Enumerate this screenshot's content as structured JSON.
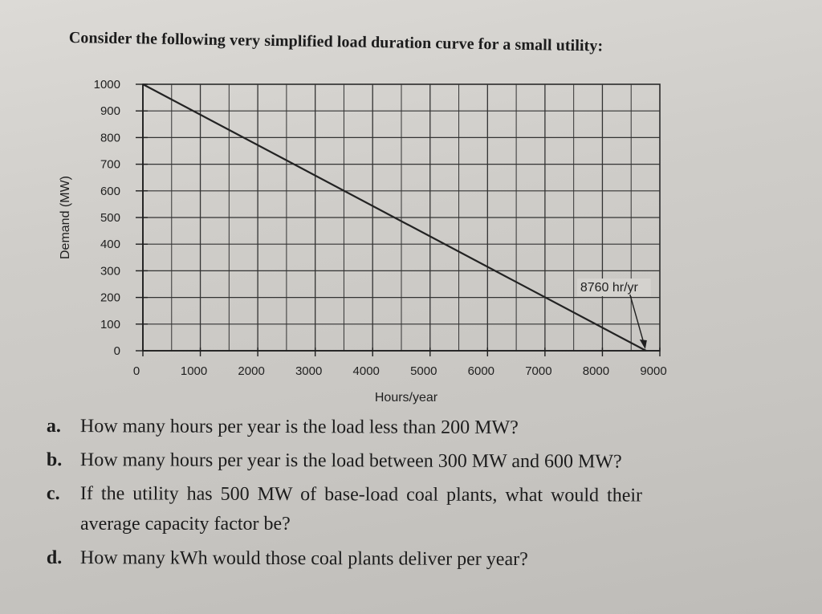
{
  "intro": "Consider the following very simplified load duration curve for a small utility:",
  "chart_data": {
    "type": "line",
    "title": "",
    "xlabel": "Hours/year",
    "ylabel": "Demand (MW)",
    "xlim": [
      0,
      9000
    ],
    "ylim": [
      0,
      1000
    ],
    "xticks": [
      0,
      1000,
      2000,
      3000,
      4000,
      5000,
      6000,
      7000,
      8000,
      9000
    ],
    "yticks": [
      0,
      100,
      200,
      300,
      400,
      500,
      600,
      700,
      800,
      900,
      1000
    ],
    "grid": true,
    "series": [
      {
        "x": [
          0,
          8760
        ],
        "y": [
          1000,
          0
        ]
      }
    ],
    "annotation": {
      "text": "8760 hr/yr",
      "x": 8760,
      "y": 0
    }
  },
  "questions": [
    {
      "letter": "a.",
      "text": "How many hours per year is the load less than 200 MW?"
    },
    {
      "letter": "b.",
      "text": "How many hours per year is the load between 300 MW and 600 MW?"
    },
    {
      "letter": "c.",
      "text": "If the utility has 500 MW of base-load coal plants, what would their",
      "continuation": "average capacity factor be?"
    },
    {
      "letter": "d.",
      "text": "How many kWh would those coal plants deliver per year?"
    }
  ]
}
